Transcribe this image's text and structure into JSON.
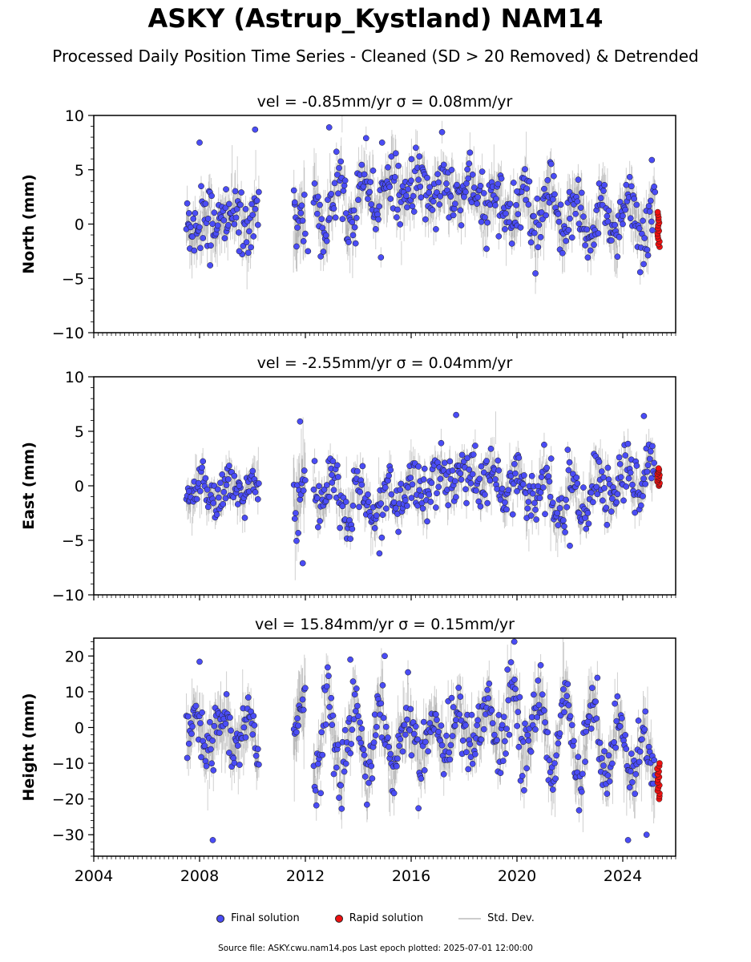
{
  "title": "ASKY (Astrup_Kystland) NAM14",
  "subtitle": "Processed Daily Position Time Series - Cleaned (SD > 20 Removed) & Detrended",
  "legend": {
    "final": "Final solution",
    "rapid": "Rapid solution",
    "std": "Std. Dev."
  },
  "colors": {
    "final": "#4a4cf5",
    "rapid": "#ee1111",
    "std": "#bbbbbb"
  },
  "source_note": "Source file: ASKY.cwu.nam14.pos  Last epoch plotted: 2025-07-01 12:00:00",
  "chart_data": [
    {
      "type": "scatter",
      "title": "vel = -0.85mm/yr   σ = 0.08mm/yr",
      "ylabel": "North (mm)",
      "ylim": [
        -10,
        10
      ],
      "yticks": [
        -10,
        -5,
        0,
        5,
        10
      ],
      "ytick_labels": [
        "−10",
        "−5",
        "0",
        "5",
        "10"
      ],
      "xlim": [
        2004,
        2026
      ],
      "xticks": [
        2004,
        2008,
        2012,
        2016,
        2020,
        2024
      ],
      "show_xtick_labels": false,
      "segments": [
        {
          "start": 2007.5,
          "end": 2010.25,
          "amp": 2.0,
          "noise": 1.5,
          "sd": 1.4
        },
        {
          "start": 2011.55,
          "end": 2012.0,
          "amp": 1.5,
          "noise": 1.8,
          "sd": 2.2
        },
        {
          "start": 2012.3,
          "end": 2025.25,
          "amp": 2.0,
          "noise": 1.5,
          "sd": 1.4
        }
      ],
      "trend": [
        [
          2007.5,
          0.0
        ],
        [
          2012.3,
          1.2
        ],
        [
          2015.0,
          3.5
        ],
        [
          2018.0,
          2.6
        ],
        [
          2021.0,
          0.8
        ],
        [
          2025.25,
          0.3
        ]
      ],
      "final_series": [
        [
          2007.6,
          1.0
        ],
        [
          2008.0,
          7.5
        ],
        [
          2008.4,
          -3.8
        ],
        [
          2009.0,
          3.2
        ],
        [
          2009.5,
          -2.5
        ],
        [
          2010.1,
          8.7
        ],
        [
          2011.6,
          2.0
        ],
        [
          2012.1,
          -2.5
        ],
        [
          2012.9,
          8.9
        ],
        [
          2014.9,
          7.5
        ],
        [
          2016.0,
          4.0
        ],
        [
          2018.0,
          2.5
        ],
        [
          2020.0,
          3.0
        ],
        [
          2022.0,
          0.5
        ],
        [
          2024.0,
          0.0
        ],
        [
          2025.1,
          5.9
        ]
      ],
      "rapid": {
        "x": 2025.35,
        "min": -2.1,
        "max": 1.1
      }
    },
    {
      "type": "scatter",
      "title": "vel = -2.55mm/yr   σ = 0.04mm/yr",
      "ylabel": "East (mm)",
      "ylim": [
        -10,
        10
      ],
      "yticks": [
        -10,
        -5,
        0,
        5,
        10
      ],
      "ytick_labels": [
        "−10",
        "−5",
        "0",
        "5",
        "10"
      ],
      "xlim": [
        2004,
        2026
      ],
      "xticks": [
        2004,
        2008,
        2012,
        2016,
        2020,
        2024
      ],
      "show_xtick_labels": false,
      "segments": [
        {
          "start": 2007.5,
          "end": 2010.25,
          "amp": 1.4,
          "noise": 1.0,
          "sd": 1.0
        },
        {
          "start": 2011.55,
          "end": 2012.0,
          "amp": 1.2,
          "noise": 1.8,
          "sd": 2.2
        },
        {
          "start": 2012.3,
          "end": 2025.25,
          "amp": 1.6,
          "noise": 1.3,
          "sd": 1.1
        }
      ],
      "trend": [
        [
          2007.5,
          -0.7
        ],
        [
          2012.3,
          0.0
        ],
        [
          2014.5,
          -1.8
        ],
        [
          2017.7,
          1.0
        ],
        [
          2020.0,
          0.0
        ],
        [
          2022.0,
          -2.0
        ],
        [
          2024.0,
          0.8
        ],
        [
          2025.25,
          1.0
        ]
      ],
      "final_series": [
        [
          2007.6,
          -0.5
        ],
        [
          2009.5,
          0.0
        ],
        [
          2011.8,
          5.9
        ],
        [
          2011.9,
          -7.1
        ],
        [
          2013.0,
          1.0
        ],
        [
          2014.8,
          -6.2
        ],
        [
          2017.7,
          6.5
        ],
        [
          2020.0,
          -0.5
        ],
        [
          2022.0,
          -5.5
        ],
        [
          2024.8,
          6.4
        ]
      ],
      "rapid": {
        "x": 2025.35,
        "min": 0.0,
        "max": 1.6
      }
    },
    {
      "type": "scatter",
      "title": "vel = 15.84mm/yr   σ = 0.15mm/yr",
      "ylabel": "Height (mm)",
      "ylim": [
        -36,
        25
      ],
      "yticks": [
        -30,
        -20,
        -10,
        0,
        10,
        20
      ],
      "ytick_labels": [
        "−30",
        "−20",
        "−10",
        "0",
        "10",
        "20"
      ],
      "xlim": [
        2004,
        2026
      ],
      "xticks": [
        2004,
        2008,
        2012,
        2016,
        2020,
        2024
      ],
      "xtick_labels": [
        "2004",
        "2008",
        "2012",
        "2016",
        "2020",
        "2024"
      ],
      "show_xtick_labels": true,
      "segments": [
        {
          "start": 2007.5,
          "end": 2010.25,
          "amp": 10.0,
          "noise": 4.0,
          "sd": 5.0
        },
        {
          "start": 2011.55,
          "end": 2012.0,
          "amp": 8.0,
          "noise": 5.0,
          "sd": 7.0
        },
        {
          "start": 2012.3,
          "end": 2025.25,
          "amp": 10.0,
          "noise": 4.5,
          "sd": 5.0
        }
      ],
      "trend": [
        [
          2007.5,
          -3.0
        ],
        [
          2012.3,
          -3.0
        ],
        [
          2016.0,
          -3.0
        ],
        [
          2020.0,
          2.0
        ],
        [
          2023.0,
          -5.0
        ],
        [
          2025.25,
          -10.0
        ]
      ],
      "final_series": [
        [
          2008.0,
          18.4
        ],
        [
          2008.5,
          -31.5
        ],
        [
          2013.7,
          19.0
        ],
        [
          2015.0,
          20.0
        ],
        [
          2019.9,
          24.0
        ],
        [
          2024.2,
          -31.5
        ],
        [
          2024.9,
          -30.0
        ]
      ],
      "rapid": {
        "x": 2025.35,
        "min": -20.0,
        "max": -10.0
      }
    }
  ]
}
